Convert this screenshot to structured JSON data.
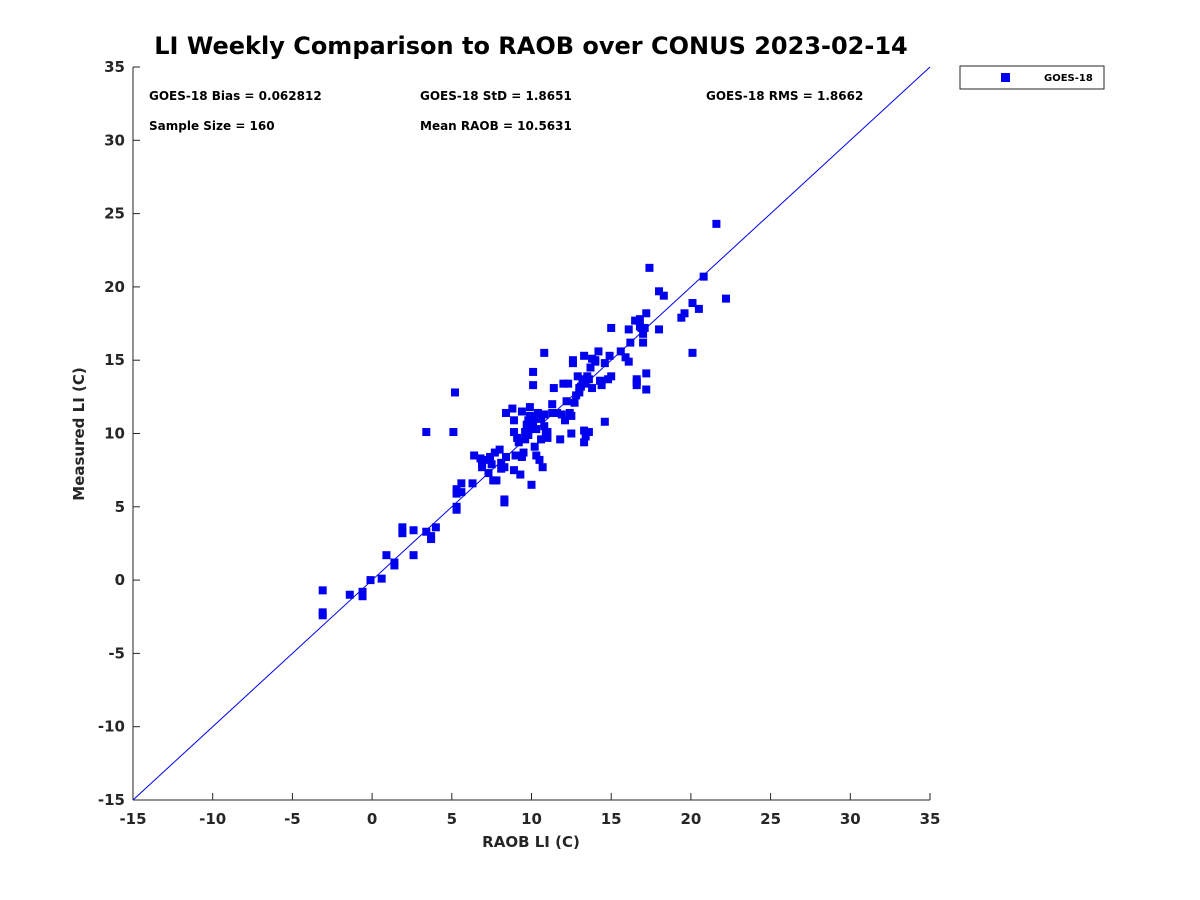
{
  "chart_data": {
    "type": "scatter",
    "title": "LI Weekly Comparison to RAOB over CONUS 2023-02-14",
    "xlabel": "RAOB LI (C)",
    "ylabel": "Measured LI (C)",
    "xlim": [
      -15,
      35
    ],
    "ylim": [
      -15,
      35
    ],
    "xticks": [
      -15,
      -10,
      -5,
      0,
      5,
      10,
      15,
      20,
      25,
      30,
      35
    ],
    "yticks": [
      -15,
      -10,
      -5,
      0,
      5,
      10,
      15,
      20,
      25,
      30,
      35
    ],
    "xtick_labels": [
      "-15",
      "-10",
      "-5",
      "0",
      "5",
      "10",
      "15",
      "20",
      "25",
      "30",
      "35"
    ],
    "ytick_labels": [
      "-15",
      "-10",
      "-5",
      "0",
      "5",
      "10",
      "15",
      "20",
      "25",
      "30",
      "35"
    ],
    "grid": false,
    "legend_position": "outside-top-right",
    "reference_line": {
      "type": "one-to-one",
      "from": [
        -15,
        -15
      ],
      "to": [
        35,
        35
      ]
    },
    "stats": {
      "bias": "GOES-18 Bias = 0.062812",
      "std": "GOES-18 StD = 1.8651",
      "rms": "GOES-18 RMS = 1.8662",
      "sample_size": "Sample Size = 160",
      "mean_raob": "Mean RAOB = 10.5631"
    },
    "series": [
      {
        "name": "GOES-18",
        "color": "#0000ee",
        "marker": "square",
        "points": [
          [
            -3.1,
            -0.7
          ],
          [
            -3.1,
            -2.2
          ],
          [
            -3.1,
            -2.4
          ],
          [
            -1.4,
            -1.0
          ],
          [
            -0.6,
            -0.8
          ],
          [
            -0.6,
            -1.1
          ],
          [
            -0.1,
            0.0
          ],
          [
            0.6,
            0.1
          ],
          [
            0.9,
            1.7
          ],
          [
            1.4,
            1.0
          ],
          [
            1.4,
            1.2
          ],
          [
            1.9,
            3.2
          ],
          [
            1.9,
            3.6
          ],
          [
            2.6,
            3.4
          ],
          [
            2.6,
            1.7
          ],
          [
            3.4,
            3.3
          ],
          [
            3.4,
            10.1
          ],
          [
            3.7,
            2.8
          ],
          [
            3.7,
            3.0
          ],
          [
            4.0,
            3.6
          ],
          [
            5.1,
            10.1
          ],
          [
            5.2,
            12.8
          ],
          [
            5.3,
            5.9
          ],
          [
            5.3,
            6.2
          ],
          [
            5.3,
            4.8
          ],
          [
            5.3,
            5.0
          ],
          [
            5.6,
            6.0
          ],
          [
            5.6,
            6.6
          ],
          [
            6.3,
            6.6
          ],
          [
            6.4,
            8.5
          ],
          [
            6.8,
            8.3
          ],
          [
            6.9,
            8.0
          ],
          [
            6.9,
            7.7
          ],
          [
            7.1,
            8.2
          ],
          [
            7.3,
            7.3
          ],
          [
            7.4,
            8.4
          ],
          [
            7.5,
            7.9
          ],
          [
            7.6,
            6.8
          ],
          [
            7.7,
            8.7
          ],
          [
            7.8,
            6.8
          ],
          [
            8.0,
            8.9
          ],
          [
            8.1,
            7.6
          ],
          [
            8.3,
            5.3
          ],
          [
            8.3,
            5.5
          ],
          [
            8.3,
            7.7
          ],
          [
            8.4,
            8.4
          ],
          [
            8.4,
            11.4
          ],
          [
            8.8,
            11.7
          ],
          [
            8.9,
            10.1
          ],
          [
            8.9,
            10.9
          ],
          [
            8.9,
            7.5
          ],
          [
            9.0,
            8.5
          ],
          [
            9.1,
            9.7
          ],
          [
            9.2,
            9.4
          ],
          [
            9.3,
            7.2
          ],
          [
            9.4,
            8.4
          ],
          [
            9.4,
            11.5
          ],
          [
            9.5,
            8.7
          ],
          [
            9.6,
            10.1
          ],
          [
            9.6,
            9.6
          ],
          [
            9.7,
            10.6
          ],
          [
            9.8,
            9.9
          ],
          [
            9.9,
            11.2
          ],
          [
            9.9,
            11.8
          ],
          [
            10.0,
            6.5
          ],
          [
            10.0,
            10.4
          ],
          [
            10.1,
            13.3
          ],
          [
            10.1,
            14.2
          ],
          [
            10.1,
            10.7
          ],
          [
            10.2,
            9.1
          ],
          [
            10.2,
            11.0
          ],
          [
            10.3,
            8.5
          ],
          [
            10.3,
            10.3
          ],
          [
            10.4,
            11.4
          ],
          [
            10.5,
            8.2
          ],
          [
            10.6,
            11.0
          ],
          [
            10.6,
            9.6
          ],
          [
            10.7,
            7.7
          ],
          [
            10.8,
            11.3
          ],
          [
            10.8,
            10.5
          ],
          [
            10.8,
            15.5
          ],
          [
            10.9,
            10.0
          ],
          [
            11.0,
            9.7
          ],
          [
            11.0,
            10.1
          ],
          [
            11.3,
            12.0
          ],
          [
            11.3,
            11.4
          ],
          [
            11.4,
            13.1
          ],
          [
            11.6,
            11.4
          ],
          [
            11.8,
            9.6
          ],
          [
            12.0,
            13.4
          ],
          [
            12.1,
            10.9
          ],
          [
            12.2,
            12.2
          ],
          [
            12.3,
            13.4
          ],
          [
            12.4,
            11.4
          ],
          [
            12.5,
            10.0
          ],
          [
            12.5,
            11.2
          ],
          [
            12.6,
            15.0
          ],
          [
            12.6,
            14.8
          ],
          [
            12.7,
            12.1
          ],
          [
            12.8,
            12.6
          ],
          [
            12.9,
            13.9
          ],
          [
            13.0,
            13.1
          ],
          [
            13.0,
            12.8
          ],
          [
            13.1,
            13.2
          ],
          [
            13.2,
            13.7
          ],
          [
            13.3,
            10.2
          ],
          [
            13.3,
            15.3
          ],
          [
            13.3,
            9.4
          ],
          [
            13.4,
            13.4
          ],
          [
            13.4,
            9.8
          ],
          [
            13.6,
            10.1
          ],
          [
            13.6,
            13.7
          ],
          [
            13.7,
            14.5
          ],
          [
            13.8,
            13.1
          ],
          [
            13.8,
            15.1
          ],
          [
            14.0,
            15.0
          ],
          [
            14.0,
            14.9
          ],
          [
            14.2,
            15.6
          ],
          [
            14.3,
            13.6
          ],
          [
            14.4,
            13.3
          ],
          [
            14.6,
            14.8
          ],
          [
            14.6,
            10.8
          ],
          [
            14.8,
            13.7
          ],
          [
            14.9,
            15.3
          ],
          [
            15.0,
            17.2
          ],
          [
            15.0,
            13.9
          ],
          [
            15.6,
            15.6
          ],
          [
            15.9,
            15.2
          ],
          [
            16.1,
            17.1
          ],
          [
            16.1,
            14.9
          ],
          [
            16.2,
            16.2
          ],
          [
            16.5,
            17.7
          ],
          [
            16.6,
            13.5
          ],
          [
            16.6,
            13.7
          ],
          [
            16.6,
            13.3
          ],
          [
            16.8,
            17.3
          ],
          [
            16.8,
            17.8
          ],
          [
            17.0,
            16.8
          ],
          [
            17.0,
            16.2
          ],
          [
            17.1,
            17.2
          ],
          [
            17.2,
            18.2
          ],
          [
            17.2,
            14.1
          ],
          [
            17.2,
            13.0
          ],
          [
            17.4,
            21.3
          ],
          [
            18.0,
            19.7
          ],
          [
            18.0,
            17.1
          ],
          [
            18.3,
            19.4
          ],
          [
            19.4,
            17.9
          ],
          [
            19.6,
            18.2
          ],
          [
            20.1,
            18.9
          ],
          [
            20.1,
            15.5
          ],
          [
            20.5,
            18.5
          ],
          [
            20.8,
            20.7
          ],
          [
            21.6,
            24.3
          ],
          [
            22.2,
            19.2
          ],
          [
            16.9,
            17.2
          ],
          [
            13.5,
            13.9
          ],
          [
            11.9,
            11.3
          ],
          [
            9.8,
            10.9
          ],
          [
            8.1,
            8.0
          ]
        ]
      }
    ]
  },
  "legend": {
    "items": [
      {
        "label": "GOES-18",
        "color": "#0000ee"
      }
    ]
  }
}
